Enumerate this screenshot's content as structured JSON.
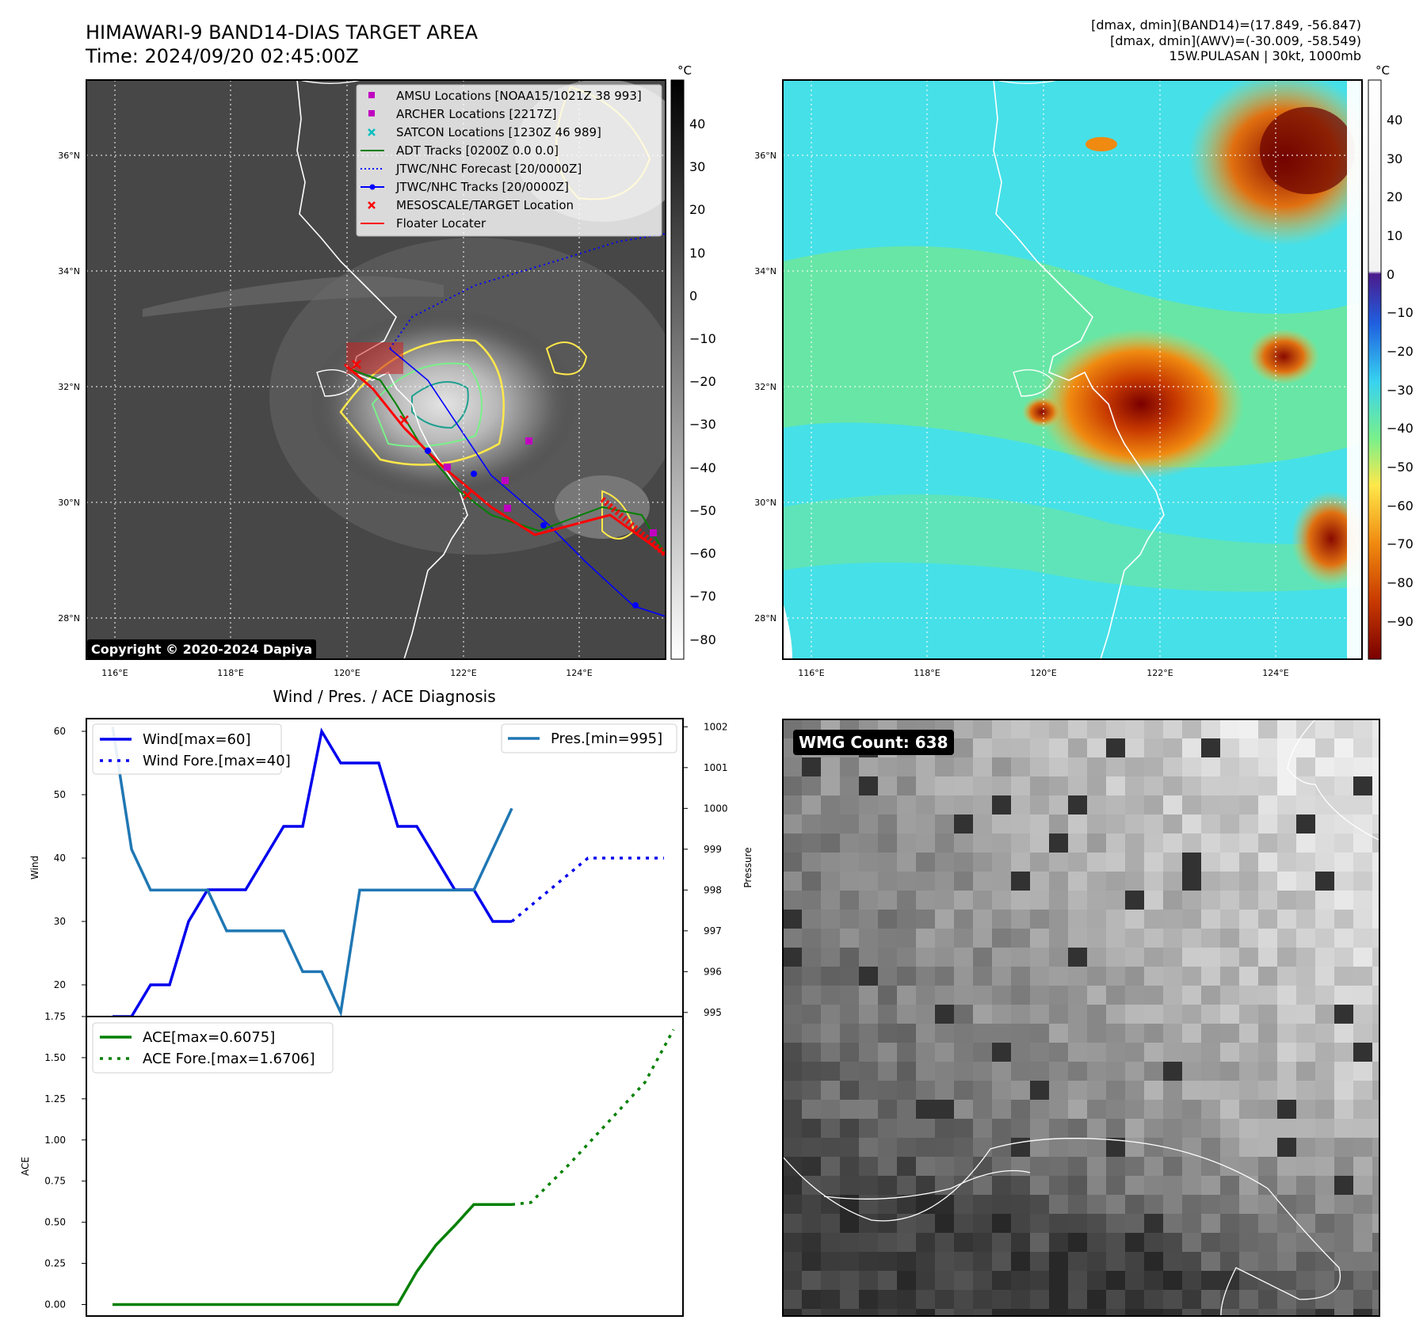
{
  "header": {
    "title_line1": "HIMAWARI-9 BAND14-DIAS TARGET AREA",
    "title_line2": "Time: 2024/09/20 02:45:00Z",
    "info_line1": "[dmax, dmin](BAND14)=(17.849, -56.847)",
    "info_line2": "[dmax, dmin](AWV)=(-30.009, -58.549)",
    "info_line3": "15W.PULASAN | 30kt, 1000mb"
  },
  "copyright": "Copyright © 2020-2024 Dapiya",
  "map": {
    "lon_labels": [
      "116°E",
      "118°E",
      "120°E",
      "122°E",
      "124°E"
    ],
    "lat_labels": [
      "36°N",
      "34°N",
      "32°N",
      "30°N",
      "28°N"
    ],
    "unit": "°C"
  },
  "legend": [
    {
      "label": "AMSU Locations [NOAA15/1021Z 38 993]",
      "color": "#c000c0",
      "symbol": "square"
    },
    {
      "label": "ARCHER Locations [2217Z]",
      "color": "#c000c0",
      "symbol": "square"
    },
    {
      "label": "SATCON Locations [1230Z 46 989]",
      "color": "#00bfbf",
      "symbol": "x"
    },
    {
      "label": "ADT Tracks [0200Z 0.0 0.0]",
      "color": "#008000",
      "symbol": "line"
    },
    {
      "label": "JTWC/NHC Forecast [20/0000Z]",
      "color": "#0000ff",
      "symbol": "dotted"
    },
    {
      "label": "JTWC/NHC Tracks [20/0000Z]",
      "color": "#0000ff",
      "symbol": "line-dot"
    },
    {
      "label": "MESOSCALE/TARGET Location",
      "color": "#ff0000",
      "symbol": "x"
    },
    {
      "label": "Floater Locater",
      "color": "#ff0000",
      "symbol": "line"
    }
  ],
  "colorbar_gray": {
    "ticks": [
      "40",
      "30",
      "20",
      "10",
      "0",
      "−10",
      "−20",
      "−30",
      "−40",
      "−50",
      "−60",
      "−70",
      "−80"
    ]
  },
  "colorbar_color": {
    "ticks": [
      "40",
      "30",
      "20",
      "10",
      "0",
      "−10",
      "−20",
      "−30",
      "−40",
      "−50",
      "−60",
      "−70",
      "−80",
      "−90"
    ]
  },
  "diag_title": "Wind / Pres. / ACE Diagnosis",
  "wmg_label": "WMG Count: 638",
  "colors": {
    "wind": "#0000ee",
    "pressure": "#1f77b4",
    "ace": "#008000",
    "floater": "#ff0000"
  },
  "chart_data": [
    {
      "type": "line",
      "title": "Wind / Pres. / ACE Diagnosis",
      "ylabel": "Wind",
      "ylim": [
        15,
        62
      ],
      "yticks": [
        "20",
        "30",
        "40",
        "50",
        "60"
      ],
      "series": [
        {
          "name": "Wind[max=60]",
          "x": [
            0,
            1,
            2,
            3,
            4,
            5,
            6,
            7,
            8,
            9,
            10,
            11,
            12,
            13,
            14,
            15,
            16,
            17,
            18,
            19,
            20,
            21
          ],
          "values": [
            15,
            15,
            20,
            20,
            30,
            35,
            35,
            35,
            40,
            45,
            45,
            60,
            55,
            55,
            55,
            45,
            45,
            40,
            35,
            35,
            30,
            30
          ]
        },
        {
          "name": "Wind Fore.[max=40]",
          "x": [
            21,
            23,
            25,
            27,
            29
          ],
          "values": [
            30,
            35,
            40,
            40,
            40
          ],
          "style": "dotted"
        }
      ],
      "legend_wind": [
        "Wind[max=60]",
        "Wind Fore.[max=40]"
      ],
      "y2label": "Pressure",
      "y2lim": [
        994.9,
        1002.2
      ],
      "y2ticks": [
        "1002",
        "1001",
        "1000",
        "999",
        "998",
        "997",
        "996",
        "995"
      ],
      "pressure": {
        "name": "Pres.[min=995]",
        "x": [
          0,
          1,
          2,
          3,
          4,
          5,
          6,
          7,
          8,
          9,
          10,
          11,
          12,
          13,
          14,
          15,
          16,
          17,
          18,
          19,
          20,
          21
        ],
        "values": [
          1002,
          999,
          998,
          998,
          998,
          998,
          997,
          997,
          997,
          997,
          996,
          996,
          995,
          998,
          998,
          998,
          998,
          998,
          998,
          998,
          999,
          1000
        ]
      },
      "legend_pressure": [
        "Pres.[min=995]"
      ]
    },
    {
      "type": "line",
      "ylabel": "ACE",
      "ylim": [
        -0.07,
        1.75
      ],
      "yticks": [
        "0.00",
        "0.25",
        "0.50",
        "0.75",
        "1.00",
        "1.25",
        "1.50",
        "1.75"
      ],
      "series": [
        {
          "name": "ACE[max=0.6075]",
          "x": [
            0,
            1,
            2,
            3,
            4,
            5,
            6,
            7,
            8,
            9,
            10,
            11,
            12,
            13,
            14,
            15,
            16,
            17,
            18,
            19,
            20,
            21
          ],
          "values": [
            0,
            0,
            0,
            0,
            0,
            0,
            0,
            0,
            0,
            0,
            0,
            0,
            0,
            0,
            0,
            0,
            0.2,
            0.36,
            0.48,
            0.6075,
            0.6075,
            0.6075
          ]
        },
        {
          "name": "ACE Fore.[max=1.6706]",
          "x": [
            21,
            22,
            24,
            26,
            28,
            29.5
          ],
          "values": [
            0.6075,
            0.62,
            0.85,
            1.1,
            1.35,
            1.6706
          ],
          "style": "dotted"
        }
      ],
      "legend_ace": [
        "ACE[max=0.6075]",
        "ACE Fore.[max=1.6706]"
      ]
    }
  ]
}
